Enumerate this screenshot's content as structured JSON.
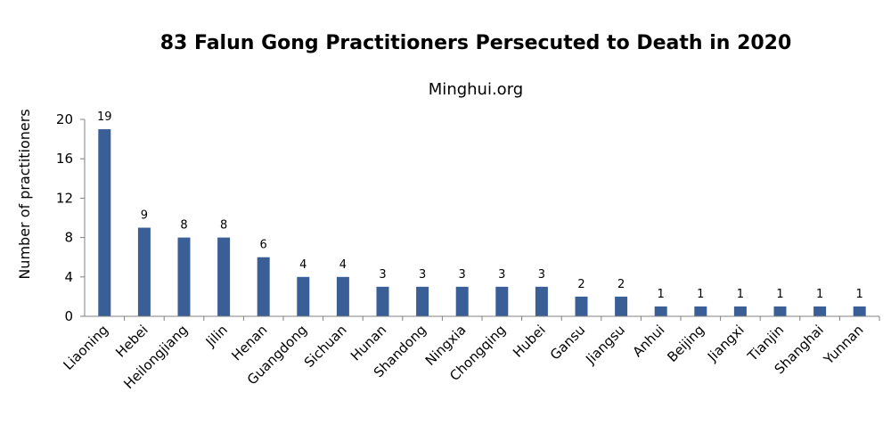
{
  "chart_data": {
    "type": "bar",
    "title": "83 Falun Gong Practitioners Persecuted to Death in 2020",
    "subtitle": "Minghui.org",
    "xlabel": "",
    "ylabel": "Number of practitioners",
    "ylim": [
      0,
      20
    ],
    "yticks": [
      0,
      4,
      8,
      12,
      16,
      20
    ],
    "grid": false,
    "bar_color": "#3a5f96",
    "categories": [
      "Liaoning",
      "Hebei",
      "Heilongjiang",
      "Jilin",
      "Henan",
      "Guangdong",
      "Sichuan",
      "Hunan",
      "Shandong",
      "Ningxia",
      "Chongqing",
      "Hubei",
      "Gansu",
      "Jiangsu",
      "Anhui",
      "Beijing",
      "Jiangxi",
      "Tianjin",
      "Shanghai",
      "Yunnan"
    ],
    "values": [
      19,
      9,
      8,
      8,
      6,
      4,
      4,
      3,
      3,
      3,
      3,
      3,
      2,
      2,
      1,
      1,
      1,
      1,
      1,
      1
    ]
  }
}
